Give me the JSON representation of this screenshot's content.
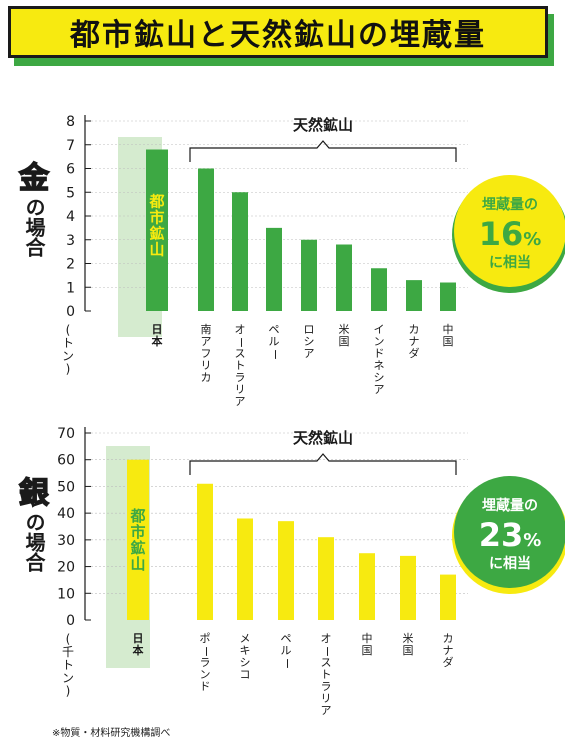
{
  "title": "都市鉱山と天然鉱山の埋蔵量",
  "note": "※物質・材料研究機構調べ",
  "colors": {
    "green": "#3da843",
    "yellow": "#f7ea10",
    "pale_green": "#d5ebcf",
    "dark": "#1a1a1a"
  },
  "charts": [
    {
      "metal": "金",
      "label_rest": "の場合",
      "unit_label": "(トン)",
      "urban_label": "都市鉱山",
      "natural_label": "天然鉱山",
      "badge": {
        "top": "埋蔵量の",
        "pct": "16",
        "pct_sign": "%",
        "bottom": "に相当"
      }
    },
    {
      "metal": "銀",
      "label_rest": "の場合",
      "unit_label": "(千トン)",
      "urban_label": "都市鉱山",
      "natural_label": "天然鉱山",
      "badge": {
        "top": "埋蔵量の",
        "pct": "23",
        "pct_sign": "%",
        "bottom": "に相当"
      }
    }
  ],
  "chart_data": [
    {
      "type": "bar",
      "title": "金の場合",
      "ylabel": "(トン)",
      "ylim": [
        0,
        8
      ],
      "yticks": [
        "0",
        "1",
        "2",
        "3",
        "4",
        "5",
        "6",
        "7",
        "8"
      ],
      "categories": [
        "日本",
        "南アフリカ",
        "オーストラリア",
        "ペルー",
        "ロシア",
        "米国",
        "インドネシア",
        "カナダ",
        "中国"
      ],
      "values": [
        6.8,
        6.0,
        5.0,
        3.5,
        3.0,
        2.8,
        1.8,
        1.3,
        1.2
      ],
      "colors": [
        "#3da843",
        "#3da843",
        "#3da843",
        "#3da843",
        "#3da843",
        "#3da843",
        "#3da843",
        "#3da843",
        "#3da843"
      ]
    },
    {
      "type": "bar",
      "title": "銀の場合",
      "ylabel": "(千トン)",
      "ylim": [
        0,
        70
      ],
      "yticks": [
        "0",
        "10",
        "20",
        "30",
        "40",
        "50",
        "60",
        "70"
      ],
      "categories": [
        "日本",
        "ポーランド",
        "メキシコ",
        "ペルー",
        "オーストラリア",
        "中国",
        "米国",
        "カナダ"
      ],
      "values": [
        60,
        51,
        38,
        37,
        31,
        25,
        24,
        17
      ],
      "colors": [
        "#f7ea10",
        "#f7ea10",
        "#f7ea10",
        "#f7ea10",
        "#f7ea10",
        "#f7ea10",
        "#f7ea10",
        "#f7ea10"
      ]
    }
  ]
}
